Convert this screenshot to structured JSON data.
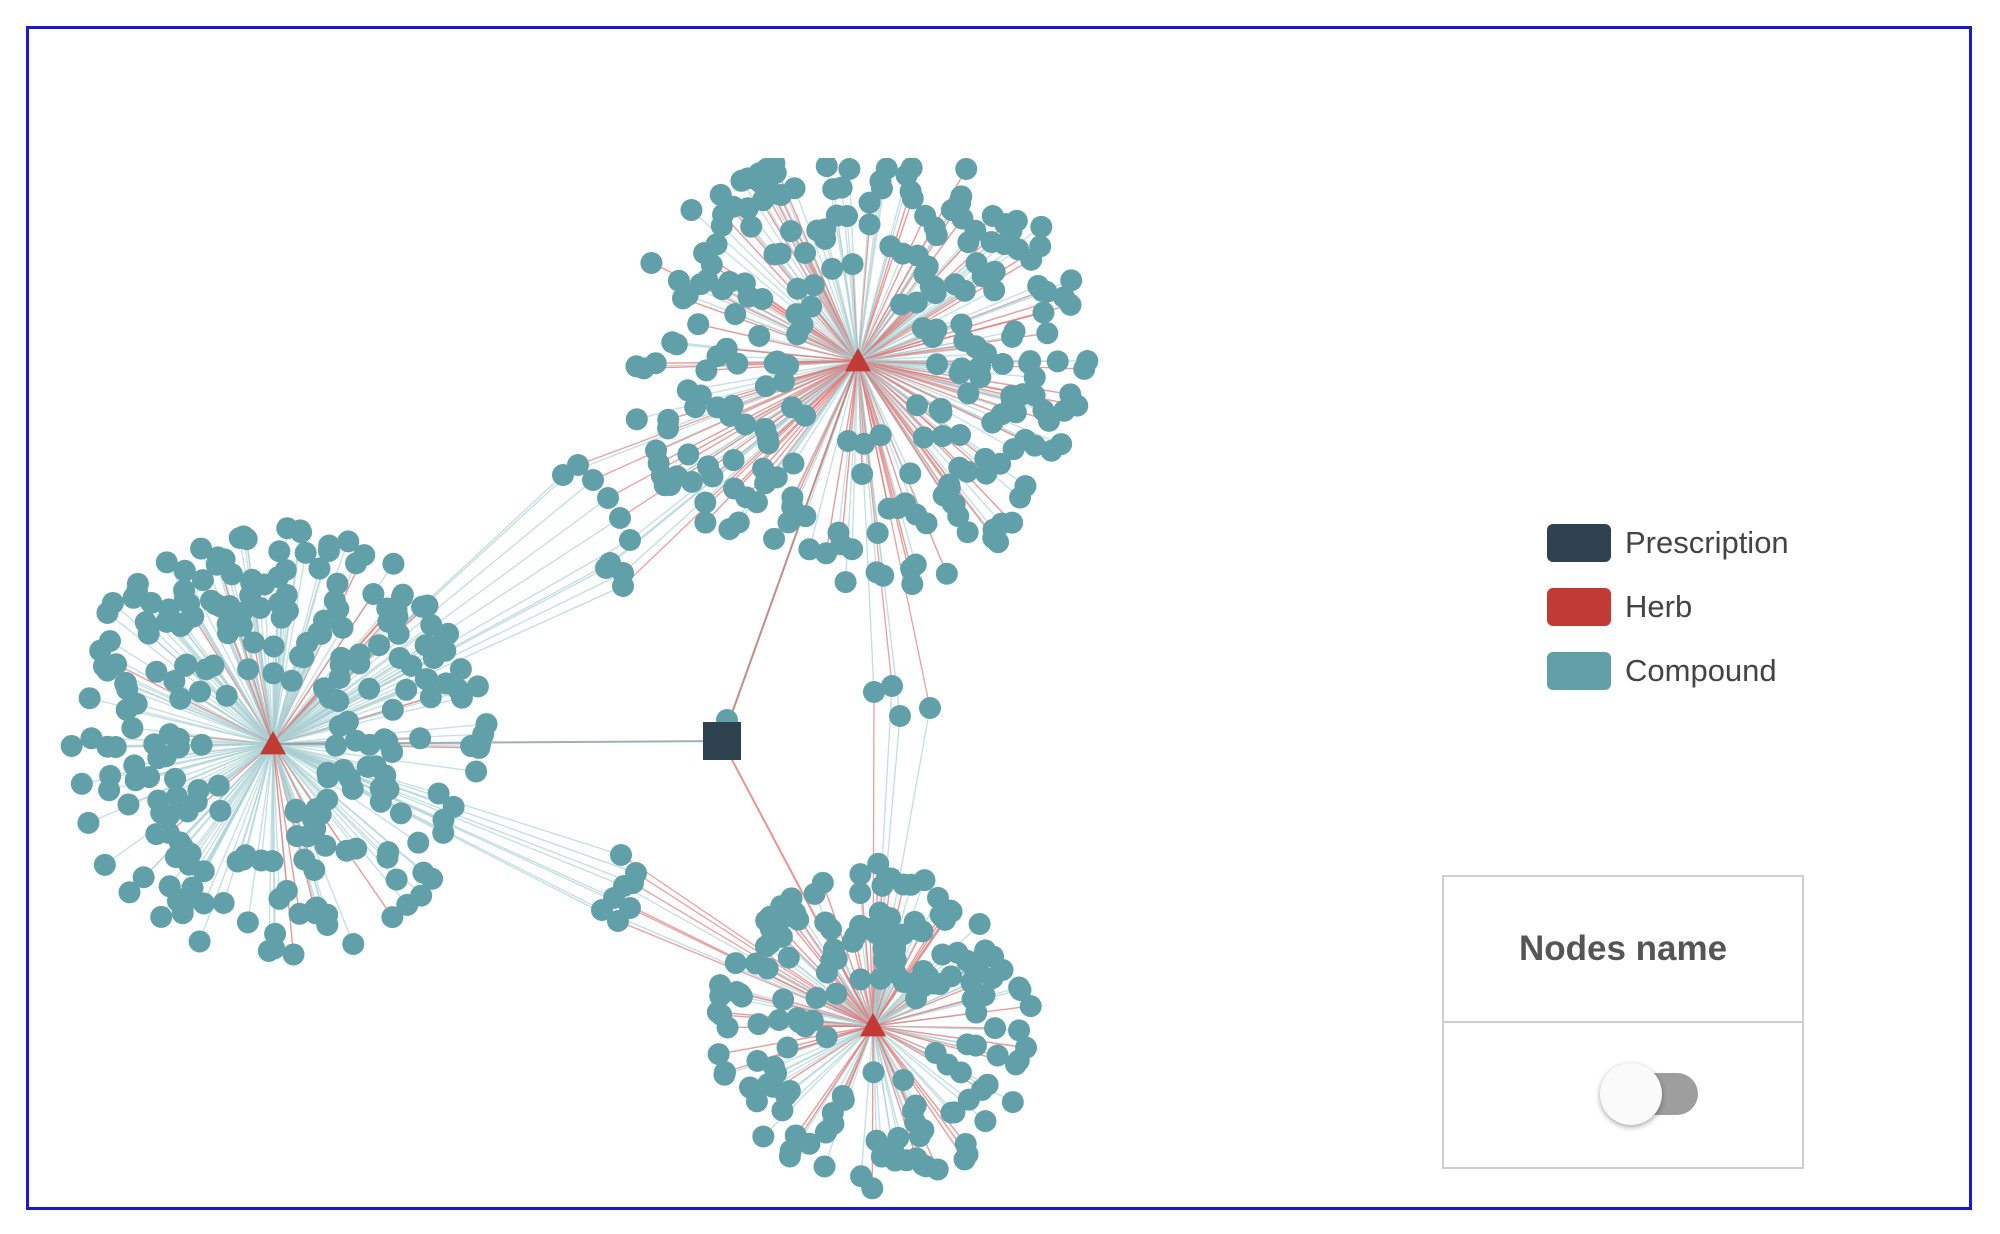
{
  "legend": {
    "items": [
      {
        "label": "Prescription",
        "color": "#2f4250"
      },
      {
        "label": "Herb",
        "color": "#c23a36"
      },
      {
        "label": "Compound",
        "color": "#61a0a8"
      }
    ]
  },
  "nodes_panel": {
    "title": "Nodes name",
    "toggle_on": false
  },
  "graph": {
    "colors": {
      "prescription": "#2f4250",
      "herb": "#c23a36",
      "compound": "#61a0a8",
      "compound_edge": "#a9cfd3",
      "herb_edge": "#e07878",
      "prescription_edge": "#8a9aa5"
    },
    "node_types": [
      "prescription",
      "herb",
      "compound"
    ],
    "herb_count": 3,
    "prescription_count": 1
  }
}
